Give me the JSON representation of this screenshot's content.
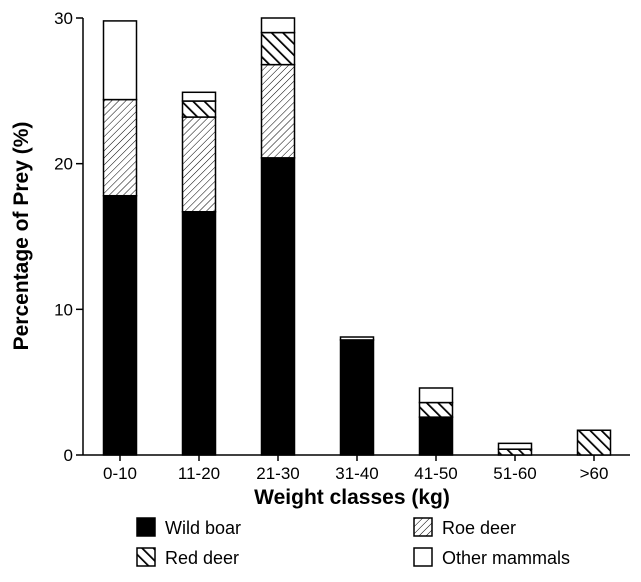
{
  "chart_data": {
    "type": "bar",
    "stacked": true,
    "xlabel": "Weight classes (kg)",
    "ylabel": "Percentage of Prey (%)",
    "ylim": [
      0,
      30
    ],
    "yticks": [
      0,
      10,
      20,
      30
    ],
    "categories": [
      "0-10",
      "11-20",
      "21-30",
      "31-40",
      "41-50",
      "51-60",
      ">60"
    ],
    "series": [
      {
        "name": "Wild boar",
        "pattern": "solid",
        "color": "#000000",
        "values": [
          17.8,
          16.7,
          20.4,
          7.9,
          2.6,
          0,
          0
        ]
      },
      {
        "name": "Roe deer",
        "pattern": "diagonal-hatch-fine",
        "color": "#000000",
        "values": [
          6.6,
          6.5,
          6.4,
          0,
          0,
          0,
          0
        ]
      },
      {
        "name": "Red deer",
        "pattern": "diagonal-hatch-bold",
        "color": "#000000",
        "values": [
          0,
          1.1,
          2.2,
          0,
          1.0,
          0.4,
          1.7
        ]
      },
      {
        "name": "Other mammals",
        "pattern": "empty",
        "color": "#ffffff",
        "values": [
          5.4,
          0.6,
          1.0,
          0.2,
          1.0,
          0.4,
          0
        ]
      }
    ],
    "legend_position": "bottom",
    "grid": false
  }
}
